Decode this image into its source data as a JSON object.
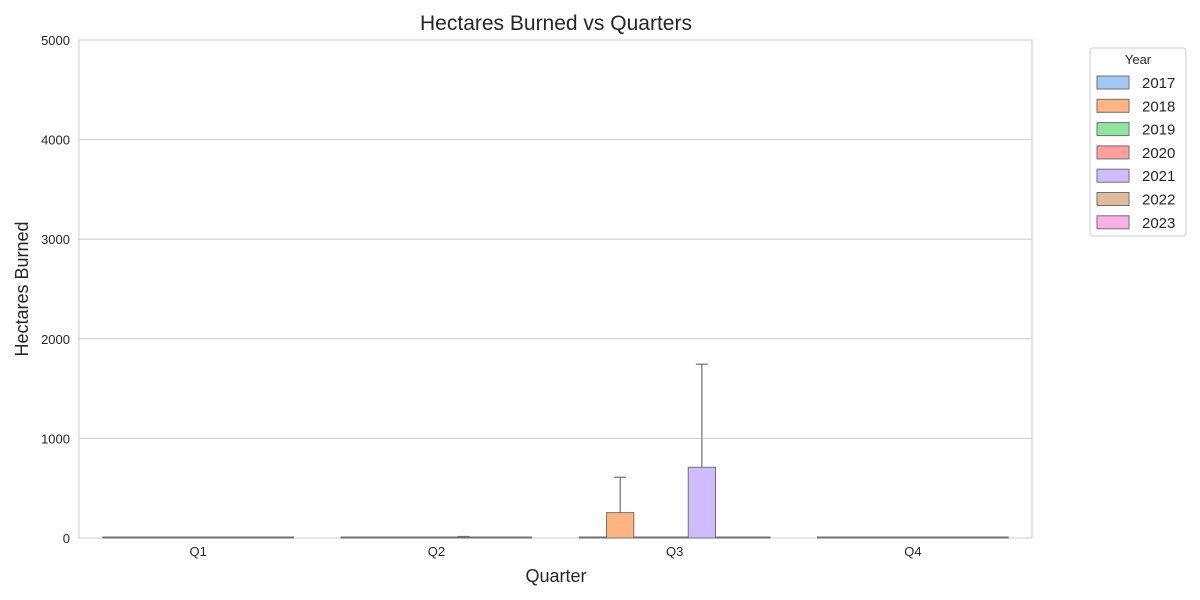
{
  "chart_data": {
    "type": "bar",
    "title": "Hectares Burned vs Quarters",
    "xlabel": "Quarter",
    "ylabel": "Hectares Burned",
    "categories": [
      "Q1",
      "Q2",
      "Q3",
      "Q4"
    ],
    "ylim": [
      0,
      5000
    ],
    "yticks": [
      0,
      1000,
      2000,
      3000,
      4000,
      5000
    ],
    "grid": "horizontal",
    "legend": {
      "title": "Year",
      "placement": "outside-top-right"
    },
    "series": [
      {
        "name": "2017",
        "color": "#a1c9f4",
        "values": [
          0,
          0,
          5,
          0
        ],
        "error_high": [
          0,
          0,
          0,
          0
        ]
      },
      {
        "name": "2018",
        "color": "#ffb482",
        "values": [
          0,
          0,
          255,
          0
        ],
        "error_high": [
          0,
          0,
          610,
          0
        ]
      },
      {
        "name": "2019",
        "color": "#8de5a1",
        "values": [
          0,
          0,
          5,
          0
        ],
        "error_high": [
          0,
          0,
          0,
          0
        ]
      },
      {
        "name": "2020",
        "color": "#ff9f9b",
        "values": [
          0,
          0,
          0,
          0
        ],
        "error_high": [
          0,
          0,
          0,
          0
        ]
      },
      {
        "name": "2021",
        "color": "#d0bbff",
        "values": [
          0,
          10,
          710,
          0
        ],
        "error_high": [
          0,
          15,
          1745,
          0
        ]
      },
      {
        "name": "2022",
        "color": "#debb9b",
        "values": [
          0,
          0,
          5,
          0
        ],
        "error_high": [
          0,
          0,
          0,
          0
        ]
      },
      {
        "name": "2023",
        "color": "#fab0e4",
        "values": [
          0,
          0,
          0,
          0
        ],
        "error_high": [
          0,
          0,
          0,
          0
        ]
      }
    ]
  }
}
